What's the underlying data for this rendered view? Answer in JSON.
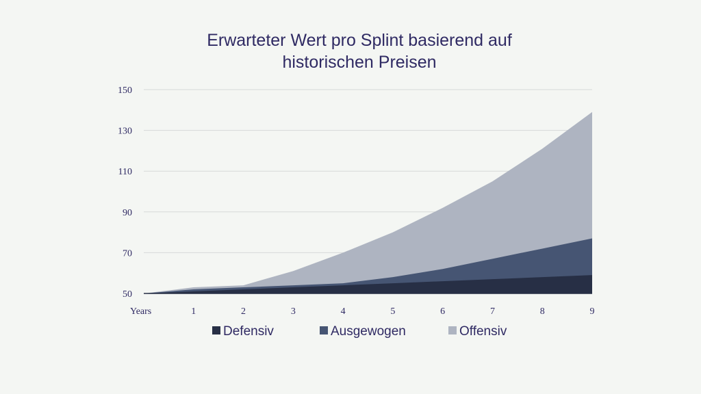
{
  "chart_data": {
    "type": "area",
    "stacked": false,
    "title": [
      "Erwarteter Wert pro Splint basierend auf",
      "historischen Preisen"
    ],
    "xlabel": "",
    "ylabel": "",
    "x": [
      0,
      1,
      2,
      3,
      4,
      5,
      6,
      7,
      8,
      9
    ],
    "x_tick_labels": [
      "Years",
      "1",
      "2",
      "3",
      "4",
      "5",
      "6",
      "7",
      "8",
      "9"
    ],
    "y_ticks": [
      50,
      70,
      90,
      110,
      130,
      150
    ],
    "ylim": [
      50,
      150
    ],
    "grid": true,
    "legend_position": "bottom",
    "series": [
      {
        "name": "Offensiv",
        "color": "#aeb4c1",
        "values": [
          50,
          53,
          54,
          61,
          70,
          80,
          92,
          105,
          121,
          139
        ]
      },
      {
        "name": "Ausgewogen",
        "color": "#465573",
        "values": [
          50,
          52,
          53,
          54,
          55,
          58,
          62,
          67,
          72,
          77
        ]
      },
      {
        "name": "Defensiv",
        "color": "#272f45",
        "values": [
          50,
          51,
          52,
          53,
          54,
          55,
          56,
          57,
          58,
          59
        ]
      }
    ],
    "legend_order": [
      "Defensiv",
      "Ausgewogen",
      "Offensiv"
    ]
  }
}
